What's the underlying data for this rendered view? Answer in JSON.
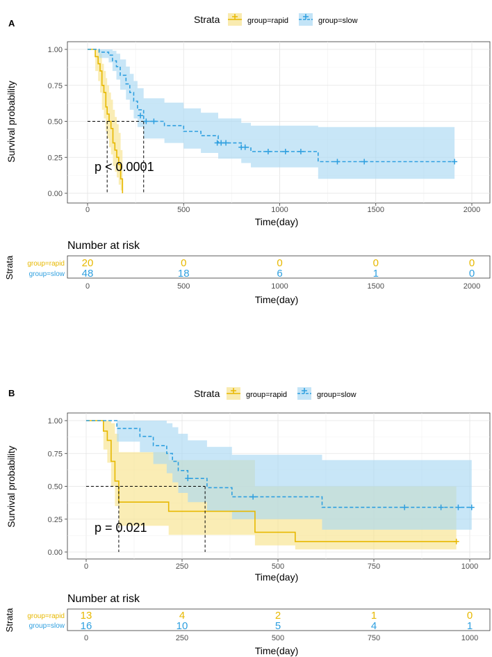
{
  "colors": {
    "rapid": "#E7B800",
    "slow": "#2E9FDF",
    "rapid_fill": "#F7E38E",
    "slow_fill": "#AAD8F3",
    "overlap_fill": "#C2D8AE"
  },
  "chart_data": [
    {
      "type": "line",
      "panel_label": "A",
      "legend_title": "Strata",
      "legend": [
        "group=rapid",
        "group=slow"
      ],
      "xlabel": "Time(day)",
      "ylabel": "Survival probability",
      "xlim": [
        0,
        2000
      ],
      "ylim": [
        0,
        1
      ],
      "xticks": [
        0,
        500,
        1000,
        1500,
        2000
      ],
      "yticks": [
        0.0,
        0.25,
        0.5,
        0.75,
        1.0
      ],
      "ytick_labels": [
        "0.00",
        "0.25",
        "0.50",
        "0.75",
        "1.00"
      ],
      "pvalue": "p < 0.0001",
      "median_lines": [
        102,
        292
      ],
      "series": [
        {
          "name": "group=rapid",
          "x": [
            0,
            40,
            55,
            65,
            75,
            85,
            95,
            102,
            112,
            122,
            132,
            142,
            152,
            162,
            172,
            182
          ],
          "y": [
            1.0,
            0.95,
            0.9,
            0.85,
            0.75,
            0.7,
            0.6,
            0.55,
            0.5,
            0.45,
            0.35,
            0.3,
            0.25,
            0.2,
            0.1,
            0.0
          ],
          "ci_upper": [
            1.0,
            1.0,
            1.0,
            0.97,
            0.9,
            0.85,
            0.8,
            0.75,
            0.7,
            0.65,
            0.58,
            0.53,
            0.48,
            0.42,
            0.3,
            0.0
          ],
          "ci_lower": [
            1.0,
            0.85,
            0.78,
            0.7,
            0.58,
            0.52,
            0.43,
            0.38,
            0.32,
            0.27,
            0.19,
            0.15,
            0.11,
            0.06,
            0.02,
            0.0
          ],
          "censor_x": [],
          "censor_y": []
        },
        {
          "name": "group=slow",
          "x": [
            0,
            60,
            110,
            130,
            150,
            170,
            200,
            220,
            240,
            260,
            292,
            400,
            500,
            590,
            680,
            800,
            850,
            1200,
            1910
          ],
          "y": [
            1.0,
            0.98,
            0.96,
            0.92,
            0.88,
            0.82,
            0.76,
            0.7,
            0.64,
            0.58,
            0.5,
            0.47,
            0.43,
            0.4,
            0.35,
            0.32,
            0.29,
            0.22,
            0.22
          ],
          "ci_upper": [
            1.0,
            1.0,
            1.0,
            0.99,
            0.97,
            0.93,
            0.88,
            0.83,
            0.78,
            0.73,
            0.66,
            0.63,
            0.59,
            0.56,
            0.52,
            0.49,
            0.47,
            0.46,
            0.46
          ],
          "ci_lower": [
            1.0,
            0.94,
            0.91,
            0.85,
            0.79,
            0.72,
            0.65,
            0.58,
            0.52,
            0.46,
            0.38,
            0.35,
            0.31,
            0.28,
            0.24,
            0.21,
            0.18,
            0.1,
            0.1
          ],
          "censor_x": [
            275,
            305,
            345,
            675,
            695,
            720,
            800,
            820,
            940,
            1030,
            1110,
            1300,
            1440,
            1910
          ],
          "censor_y": [
            0.54,
            0.5,
            0.5,
            0.35,
            0.35,
            0.35,
            0.32,
            0.32,
            0.29,
            0.29,
            0.29,
            0.22,
            0.22,
            0.22
          ]
        }
      ],
      "risk_table": {
        "title": "Number at risk",
        "ylabel": "Strata",
        "xlabel": "Time(day)",
        "rows": [
          {
            "name": "group=rapid",
            "values": [
              20,
              0,
              0,
              0,
              0
            ]
          },
          {
            "name": "group=slow",
            "values": [
              48,
              18,
              6,
              1,
              0
            ]
          }
        ]
      }
    },
    {
      "type": "line",
      "panel_label": "B",
      "legend_title": "Strata",
      "legend": [
        "group=rapid",
        "group=slow"
      ],
      "xlabel": "Time(day)",
      "ylabel": "Survival probability",
      "xlim": [
        0,
        1000
      ],
      "ylim": [
        0,
        1
      ],
      "xticks": [
        0,
        250,
        500,
        750,
        1000
      ],
      "yticks": [
        0.0,
        0.25,
        0.5,
        0.75,
        1.0
      ],
      "ytick_labels": [
        "0.00",
        "0.25",
        "0.50",
        "0.75",
        "1.00"
      ],
      "pvalue": "p = 0.021",
      "median_lines": [
        85,
        310
      ],
      "series": [
        {
          "name": "group=rapid",
          "x": [
            0,
            45,
            55,
            65,
            75,
            85,
            215,
            440,
            545,
            965
          ],
          "y": [
            1.0,
            0.92,
            0.85,
            0.69,
            0.54,
            0.38,
            0.31,
            0.15,
            0.08,
            0.08
          ],
          "ci_upper": [
            1.0,
            1.0,
            1.0,
            0.98,
            0.9,
            0.76,
            0.7,
            0.5,
            0.5,
            0.5
          ],
          "ci_lower": [
            1.0,
            0.78,
            0.68,
            0.5,
            0.35,
            0.2,
            0.13,
            0.05,
            0.02,
            0.02
          ],
          "censor_x": [
            965
          ],
          "censor_y": [
            0.08
          ]
        },
        {
          "name": "group=slow",
          "x": [
            0,
            80,
            140,
            175,
            210,
            225,
            240,
            265,
            315,
            380,
            425,
            615,
            1005
          ],
          "y": [
            1.0,
            0.94,
            0.88,
            0.81,
            0.75,
            0.69,
            0.62,
            0.56,
            0.49,
            0.42,
            0.42,
            0.34,
            0.34
          ],
          "ci_upper": [
            1.0,
            1.0,
            1.0,
            1.0,
            0.98,
            0.95,
            0.9,
            0.85,
            0.8,
            0.74,
            0.74,
            0.7,
            0.7
          ],
          "ci_lower": [
            1.0,
            0.84,
            0.76,
            0.67,
            0.6,
            0.53,
            0.45,
            0.38,
            0.31,
            0.25,
            0.25,
            0.17,
            0.17
          ],
          "censor_x": [
            265,
            435,
            830,
            925,
            970,
            1005
          ],
          "censor_y": [
            0.56,
            0.42,
            0.34,
            0.34,
            0.34,
            0.34
          ]
        }
      ],
      "risk_table": {
        "title": "Number at risk",
        "ylabel": "Strata",
        "xlabel": "Time(day)",
        "rows": [
          {
            "name": "group=rapid",
            "values": [
              13,
              4,
              2,
              1,
              0
            ]
          },
          {
            "name": "group=slow",
            "values": [
              16,
              10,
              5,
              4,
              1
            ]
          }
        ]
      }
    }
  ]
}
